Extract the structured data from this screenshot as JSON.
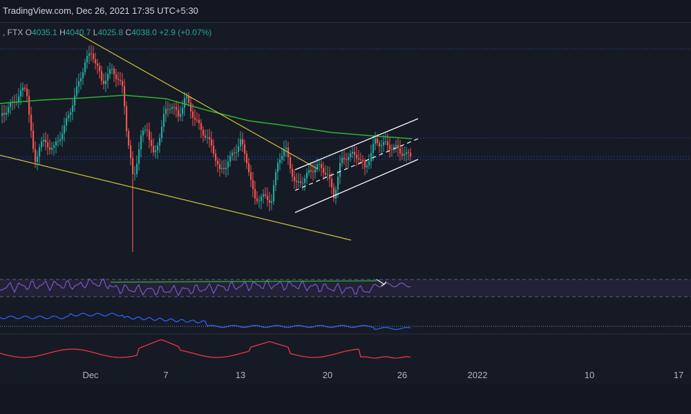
{
  "header": {
    "watermark": "TradingView.com, Dec 26, 2021 17:35 UTC+5:30"
  },
  "ohlc": {
    "exchange": ", FTX",
    "o_label": "O",
    "o_value": "4035.1",
    "h_label": "H",
    "h_value": "4040.7",
    "l_label": "L",
    "l_value": "4025.8",
    "c_label": "C",
    "c_value": "4038.0",
    "change": "+2.9 (+0.07%)"
  },
  "colors": {
    "background": "#161a25",
    "up": "#26a69a",
    "down": "#ef5350",
    "ma": "#2db52d",
    "wedge": "#d4c23b",
    "channel": "#ffffff",
    "rsi": "#7e57c2",
    "rsi_band": "#2a2540",
    "blue": "#2962ff",
    "red": "#f23645",
    "grid_label": "#b2b5be"
  },
  "chart_data": {
    "type": "candlestick",
    "x_axis_labels": [
      "Dec",
      "7",
      "13",
      "20",
      "26",
      "2022",
      "10",
      "17"
    ],
    "candles_close": [
      1042,
      1060,
      1066,
      1031,
      1048,
      1055,
      1031,
      1049,
      1046,
      1028,
      1014,
      1014,
      1035,
      1027,
      1039,
      1011,
      1036,
      1051,
      1055,
      1081,
      1092,
      1101,
      1126,
      1118,
      1114,
      1083,
      1103,
      1115,
      1081,
      1124,
      1151,
      1179,
      1151,
      1152,
      1165,
      1163,
      1173,
      1194,
      1172,
      1177,
      1179,
      1211,
      1178,
      1192,
      1178,
      1206,
      1211,
      1256,
      1237,
      1203,
      1226,
      1220,
      1225,
      1231,
      1249,
      1262,
      1258,
      1281,
      1304,
      1300,
      1275,
      1263,
      1289,
      1299,
      1298,
      1280,
      1262,
      1278,
      1260,
      1241,
      1226,
      1217,
      1230,
      1236,
      1268,
      1280,
      1241,
      1256,
      1243,
      1237,
      1205,
      1210,
      1229,
      1204,
      1223,
      1232,
      1230,
      1232,
      1243,
      1255,
      1272,
      1302,
      1302,
      1316,
      1313,
      1305,
      1282,
      1292,
      1331,
      1333,
      1304,
      1283,
      1302,
      1299,
      1297,
      1293,
      1268,
      1253,
      1244,
      1216,
      1232,
      1227,
      1229,
      1263,
      1299,
      1325,
      1307,
      1333,
      1321,
      1304,
      1301,
      1291,
      1287,
      1270,
      1249,
      1263,
      1255,
      1258,
      1270,
      1272,
      1266,
      1246,
      1259,
      1247,
      1233,
      1202,
      1190,
      1190,
      1202,
      1199,
      1206,
      1201,
      1225,
      1231,
      1232,
      1240,
      1242,
      1258,
      1272,
      1270,
      1297,
      1302,
      1313,
      1301,
      1280,
      1276,
      1305,
      1322,
      1342,
      1352,
      1376,
      1372,
      1362,
      1361,
      1376,
      1386,
      1364,
      1365,
      1393,
      1384,
      1373,
      1370,
      1368,
      1358,
      1362,
      1388,
      1398,
      1424,
      1424,
      1443,
      1471,
      1482,
      1476,
      1453,
      1453,
      1426,
      1432,
      1431,
      1451,
      1436,
      1410,
      1439,
      1451,
      1479,
      1496,
      1501,
      1479,
      1439,
      1421,
      1431,
      1404,
      1415,
      1406,
      1385,
      1376,
      1386,
      1386,
      1392,
      1374,
      1361,
      1379,
      1378,
      1375,
      1367,
      1375,
      1363,
      1368,
      1391,
      1393,
      1364,
      1369,
      1364,
      1369,
      1345,
      1362,
      1352,
      1355,
      1374,
      1383,
      1380,
      1401,
      1394,
      1431,
      1436,
      1452,
      1452,
      1460,
      1496,
      1486,
      1454,
      1452,
      1446,
      1428,
      1427,
      1443,
      1430,
      1407,
      1421,
      1411,
      1433,
      1430,
      1436,
      1450,
      1447,
      1455,
      1445,
      1457,
      1434,
      1454,
      1456,
      1456,
      1460,
      1474,
      1491,
      1487,
      1488,
      1477,
      1477,
      1470,
      1474,
      1467,
      1495,
      1506,
      1508,
      1506,
      1490,
      1507,
      1520,
      1517,
      1528,
      1526,
      1546,
      1545,
      1565,
      1568,
      1554,
      1588,
      1588,
      1587,
      1564,
      1567,
      1541,
      1553,
      1541,
      1569,
      1562,
      1561,
      1535,
      1523,
      1518,
      1510,
      1530,
      1510,
      1505,
      1529,
      1521,
      1501,
      1492,
      1504,
      1483,
      1479,
      1475,
      1448,
      1459,
      1423,
      1413,
      1418,
      1422,
      1392,
      1387,
      1385,
      1392,
      1401,
      1388,
      1408,
      1420,
      1413,
      1417,
      1419,
      1416,
      1398,
      1409,
      1409,
      1395,
      1378,
      1360,
      1381,
      1405,
      1388,
      1388,
      1402,
      1406,
      1418,
      1447,
      1447,
      1423,
      1413,
      1421,
      1416,
      1410,
      1400,
      1386,
      1369,
      1366,
      1383,
      1387,
      1386,
      1380,
      1417,
      1437,
      1442,
      1450,
      1442,
      1448,
      1427,
      1454,
      1482,
      1490,
      1473,
      1455,
      1454,
      1433,
      1428,
      1440,
      1440,
      1428,
      1436,
      1433,
      1436,
      1470,
      1470,
      1471,
      1468,
      1456,
      1456,
      1446,
      1446,
      1432,
      1428,
      1432,
      1433,
      1440,
      1448,
      1437,
      1443,
      1460,
      1464,
      1460,
      1441,
      1441,
      1432,
      1428,
      1424,
      1398,
      1404,
      1407,
      1407,
      1410,
      1416,
      1406,
      1381,
      1378,
      1379,
      1367,
      1368,
      1346,
      1326,
      1356,
      1387,
      1385,
      1388,
      1393,
      1389,
      1402,
      1419,
      1419,
      1419,
      1435,
      1428,
      1418,
      1411,
      1391,
      1407,
      1396,
      1413,
      1421,
      1436,
      1465,
      1474,
      1480,
      1466,
      1470,
      1451,
      1440,
      1454,
      1440,
      1430,
      1405,
      1401,
      1399,
      1410,
      1406,
      1413,
      1412,
      1407,
      1387,
      1393,
      1394,
      1392,
      1390,
      1384,
      1395,
      1407,
      1405,
      1402,
      1401,
      1402,
      1409,
      1406,
      1386,
      1379,
      1363,
      1363,
      1391,
      1393,
      1393,
      1394,
      1403,
      1396,
      1404,
      1401,
      1407,
      1411,
      1402,
      1388,
      1382,
      1397,
      1395,
      1405,
      1398,
      1396,
      1382,
      1373,
      1352,
      1359,
      1337,
      1306,
      1306,
      1305,
      1318,
      1327,
      1335,
      1353,
      1342,
      1340,
      1345,
      1356,
      1348,
      1323,
      1343,
      1356,
      1355,
      1361,
      1354,
      1352,
      1347,
      1360,
      1365,
      1363,
      1385,
      1379,
      1391,
      1385,
      1387,
      1394,
      1405,
      1411,
      1422,
      1430,
      1427,
      1425,
      1426,
      1448,
      1452,
      1448,
      1439,
      1444,
      1429,
      1422,
      1434,
      1434,
      1422,
      1417,
      1414,
      1384,
      1389,
      1394,
      1376,
      1380,
      1369,
      1360,
      1355,
      1356,
      1355,
      1352,
      1339,
      1330,
      1336,
      1327,
      1302,
      1287,
      1273,
      1305,
      1314,
      1315,
      1324,
      1323,
      1321,
      1344,
      1356,
      1367,
      1370,
      1374,
      1364,
      1371,
      1382,
      1400,
      1402,
      1425,
      1439,
      1444,
      1451,
      1447,
      1440,
      1422,
      1423,
      1432,
      1456,
      1451,
      1421,
      1432,
      1432,
      1427,
      1421,
      1452,
      1462,
      1452,
      1474,
      1473,
      1471,
      1502,
      1523,
      1506,
      1486,
      1461,
      1463,
      1488,
      1490,
      1501,
      1528,
      1534,
      1533,
      1553,
      1543,
      1539,
      1541,
      1523,
      1525,
      1538,
      1545,
      1553,
      1522,
      1519,
      1518,
      1495,
      1496,
      1485,
      1458,
      1461,
      1466,
      1467,
      1446,
      1446,
      1422,
      1422,
      1399,
      1389,
      1402,
      1397,
      1384,
      1360,
      1363,
      1375,
      1355,
      1351,
      1348,
      1354,
      1335,
      1322,
      1308,
      1317,
      1301,
      1278
    ],
    "price_levels_dotted": [
      71,
      200,
      227,
      231
    ],
    "ma_label": "MA",
    "indicators": [
      "RSI",
      "Blue line indicator",
      "Red line indicator"
    ],
    "x_range": [
      "late Nov 2021",
      "mid Jan 2022"
    ],
    "notes": "Falling wedge (yellow) with bullish breakout into ascending parallel channel (white), moving average (green)"
  }
}
